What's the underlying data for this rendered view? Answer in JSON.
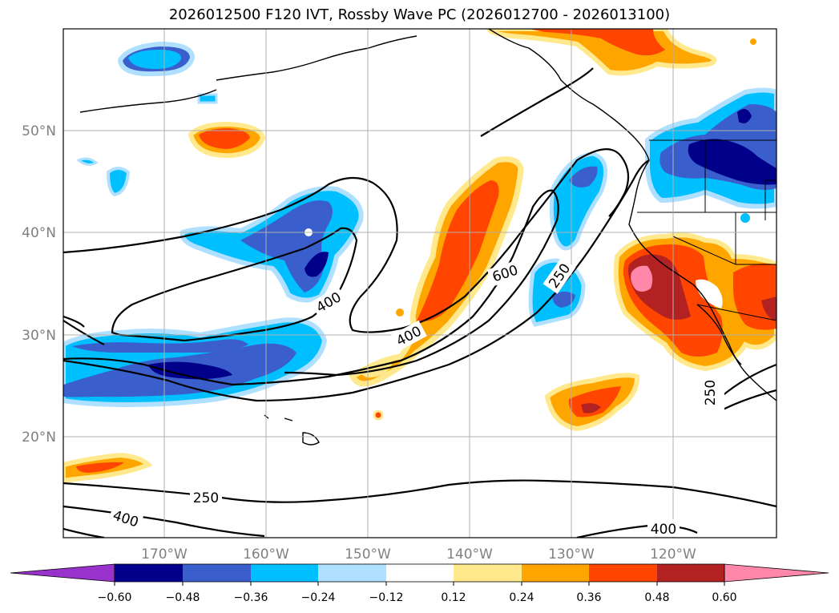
{
  "title": "2026012500 F120 IVT, Rossby Wave PC (2026012700 - 2026013100)",
  "map": {
    "lat_labels": [
      "50°N",
      "40°N",
      "30°N",
      "20°N"
    ],
    "lon_labels": [
      "170°W",
      "160°W",
      "150°W",
      "140°W",
      "130°W",
      "120°W"
    ],
    "contour_labels": [
      "400",
      "600",
      "250",
      "400",
      "250",
      "250",
      "400",
      "400"
    ],
    "grid": true
  },
  "colorbar": {
    "tick_labels": [
      "−0.60",
      "−0.48",
      "−0.36",
      "−0.24",
      "−0.12",
      "0.12",
      "0.24",
      "0.36",
      "0.48",
      "0.60"
    ],
    "colors": [
      "#9932cc",
      "#00008b",
      "#3a5fcd",
      "#00bfff",
      "#b0e0ff",
      "#ffffff",
      "#ffe98c",
      "#ffa500",
      "#ff4500",
      "#b22222",
      "#ff88aa"
    ]
  }
}
